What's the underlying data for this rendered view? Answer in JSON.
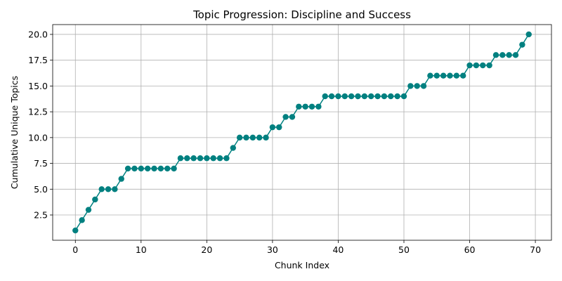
{
  "chart_data": {
    "type": "line",
    "title": "Topic Progression: Discipline and Success",
    "xlabel": "Chunk Index",
    "ylabel": "Cumulative Unique Topics",
    "xlim": [
      -3.45,
      72.45
    ],
    "ylim": [
      0.05,
      20.95
    ],
    "xticks": [
      0,
      10,
      20,
      30,
      40,
      50,
      60,
      70
    ],
    "xtick_labels": [
      "0",
      "10",
      "20",
      "30",
      "40",
      "50",
      "60",
      "70"
    ],
    "yticks": [
      2.5,
      5.0,
      7.5,
      10.0,
      12.5,
      15.0,
      17.5,
      20.0
    ],
    "ytick_labels": [
      "2.5",
      "5.0",
      "7.5",
      "10.0",
      "12.5",
      "15.0",
      "17.5",
      "20.0"
    ],
    "grid": true,
    "color": "#008080",
    "marker": "circle",
    "x": [
      0,
      1,
      2,
      3,
      4,
      5,
      6,
      7,
      8,
      9,
      10,
      11,
      12,
      13,
      14,
      15,
      16,
      17,
      18,
      19,
      20,
      21,
      22,
      23,
      24,
      25,
      26,
      27,
      28,
      29,
      30,
      31,
      32,
      33,
      34,
      35,
      36,
      37,
      38,
      39,
      40,
      41,
      42,
      43,
      44,
      45,
      46,
      47,
      48,
      49,
      50,
      51,
      52,
      53,
      54,
      55,
      56,
      57,
      58,
      59,
      60,
      61,
      62,
      63,
      64,
      65,
      66,
      67,
      68,
      69
    ],
    "y": [
      1,
      2,
      3,
      4,
      5,
      5,
      5,
      6,
      7,
      7,
      7,
      7,
      7,
      7,
      7,
      7,
      8,
      8,
      8,
      8,
      8,
      8,
      8,
      8,
      9,
      10,
      10,
      10,
      10,
      10,
      11,
      11,
      12,
      12,
      13,
      13,
      13,
      13,
      14,
      14,
      14,
      14,
      14,
      14,
      14,
      14,
      14,
      14,
      14,
      14,
      14,
      15,
      15,
      15,
      16,
      16,
      16,
      16,
      16,
      16,
      17,
      17,
      17,
      17,
      18,
      18,
      18,
      18,
      19,
      20
    ]
  }
}
